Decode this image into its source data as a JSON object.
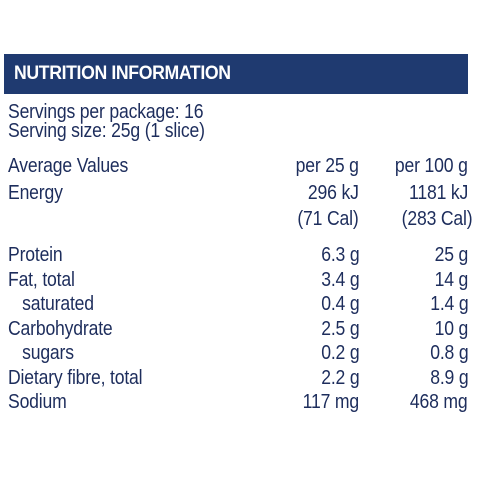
{
  "title": "NUTRITION INFORMATION",
  "servings_per_package": "Servings per package: 16",
  "serving_size": "Serving size: 25g (1 slice)",
  "columns": {
    "label": "Average Values",
    "per_serving": "per 25 g",
    "per_100g": "per 100 g"
  },
  "energy": {
    "label": "Energy",
    "per_serving_kj": "296 kJ",
    "per_100g_kj": "1181 kJ",
    "per_serving_cal": "(71 Cal)",
    "per_100g_cal": "(283 Cal)"
  },
  "nutrients": [
    {
      "label": "Protein",
      "per_serving": "6.3 g",
      "per_100g": "25 g",
      "indent": false
    },
    {
      "label": "Fat, total",
      "per_serving": "3.4 g",
      "per_100g": "14 g",
      "indent": false
    },
    {
      "label": "saturated",
      "per_serving": "0.4 g",
      "per_100g": "1.4 g",
      "indent": true
    },
    {
      "label": "Carbohydrate",
      "per_serving": "2.5 g",
      "per_100g": "10 g",
      "indent": false
    },
    {
      "label": "sugars",
      "per_serving": "0.2 g",
      "per_100g": "0.8 g",
      "indent": true
    },
    {
      "label": "Dietary fibre, total",
      "per_serving": "2.2 g",
      "per_100g": "8.9 g",
      "indent": false
    },
    {
      "label": "Sodium",
      "per_serving": "117 mg",
      "per_100g": "468 mg",
      "indent": false
    }
  ],
  "colors": {
    "header_bg": "#1f3a70",
    "text": "#1d2d5c"
  }
}
